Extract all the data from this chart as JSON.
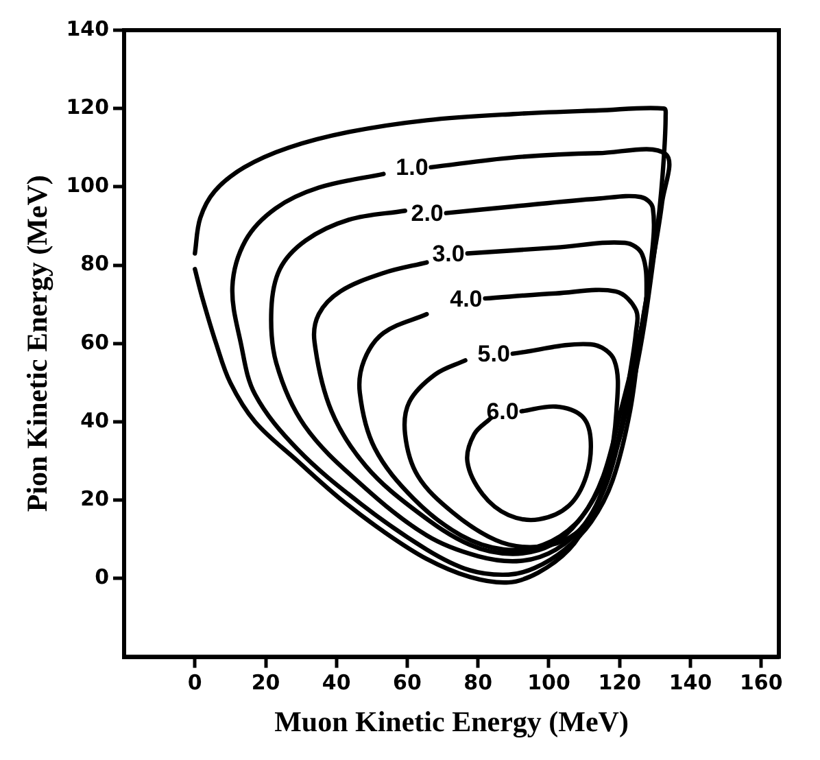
{
  "chart_data": {
    "type": "line",
    "xlabel": "Muon Kinetic Energy (MeV)",
    "ylabel": "Pion Kinetic Energy (MeV)",
    "xlim": [
      -20,
      165
    ],
    "ylim": [
      -20,
      140
    ],
    "xticks": [
      0,
      20,
      40,
      60,
      80,
      100,
      120,
      140,
      160
    ],
    "yticks": [
      0,
      20,
      40,
      60,
      80,
      100,
      120,
      140
    ],
    "grid": false,
    "legend": false,
    "marker": "none",
    "line_style": "solid",
    "series": [
      {
        "color": "#000000",
        "x": [
          0,
          1.5,
          5.7,
          14,
          26.5,
          43.5,
          65.5,
          90,
          114,
          132.5,
          133,
          132.5,
          131.3,
          129.4,
          127,
          124.6,
          122.7,
          120.3,
          116.6,
          111.8,
          105.7,
          97,
          88.6,
          77.7,
          65.5,
          53.3,
          41,
          29,
          17,
          10,
          6,
          2,
          0
        ],
        "values": [
          83,
          92,
          99,
          105,
          110,
          114,
          117,
          118.6,
          119.5,
          120,
          118,
          107.5,
          94.5,
          80.4,
          65,
          53,
          46,
          37,
          25,
          15.7,
          7.4,
          1.5,
          -1,
          0.4,
          5,
          12,
          20.4,
          30,
          40,
          50,
          60,
          72,
          79
        ]
      },
      {
        "name": "1.0",
        "color": "#000000",
        "x": [
          66.7,
          90,
          114,
          133,
          132,
          129,
          126,
          123,
          118,
          112,
          104.5,
          96,
          88.6,
          77.7,
          65.5,
          47,
          29,
          17,
          13,
          10.6,
          14.3,
          22.8,
          35,
          53.3
        ],
        "values": [
          105,
          107.5,
          108.6,
          108.4,
          96,
          79,
          63,
          43,
          25,
          14.5,
          7.4,
          2.7,
          1,
          2.1,
          7.4,
          19,
          33,
          47,
          60,
          74.5,
          86.3,
          94.5,
          99.8,
          103.3
        ]
      },
      {
        "name": "2.0",
        "color": "#000000",
        "x": [
          71,
          90,
          114,
          126,
          129.4,
          128.8,
          126,
          121.5,
          116.6,
          110.6,
          102,
          92,
          80,
          65.5,
          47,
          31,
          23,
          21.6,
          24,
          31.3,
          43.5,
          59.4
        ],
        "values": [
          93.3,
          95,
          97,
          97.4,
          94.5,
          80,
          63,
          43,
          26,
          14.5,
          7.4,
          4.5,
          5.7,
          11,
          24,
          39,
          55,
          68.6,
          79,
          86.3,
          91.6,
          93.9
        ]
      },
      {
        "name": "3.0",
        "color": "#000000",
        "x": [
          77,
          102,
          121.5,
          126.4,
          127.6,
          126.4,
          120.3,
          115.4,
          109.3,
          100.8,
          89.8,
          77.7,
          63,
          48.4,
          38.6,
          33.8,
          35,
          41.1,
          53.3,
          65.5
        ],
        "values": [
          83,
          84.5,
          85.7,
          82.7,
          72.2,
          65,
          42.7,
          26.2,
          15.7,
          8.6,
          6.3,
          8.6,
          16.9,
          28.6,
          42.7,
          60.4,
          67.5,
          73.3,
          78,
          80.7
        ]
      },
      {
        "name": "4.0",
        "color": "#000000",
        "x": [
          82,
          102,
          118.9,
          124.6,
          124.6,
          122.7,
          120.3,
          115.4,
          108.1,
          98.4,
          87.4,
          75.2,
          61.8,
          50.8,
          46.6,
          47.8,
          53.3,
          65.5
        ],
        "values": [
          71.5,
          72.8,
          73.3,
          68.6,
          62.7,
          51,
          36.8,
          25.1,
          14.5,
          8.6,
          7.4,
          11,
          20.4,
          33.3,
          47.4,
          55.7,
          62.7,
          67.5
        ]
      },
      {
        "name": "5.0",
        "color": "#000000",
        "x": [
          89.8,
          111.8,
          118.5,
          119.1,
          116.6,
          111.8,
          104.5,
          94.7,
          85,
          72.8,
          63,
          59.4,
          60.6,
          67.9,
          76.4
        ],
        "values": [
          57.4,
          59.8,
          55.7,
          42.7,
          27.4,
          15.7,
          9.8,
          8,
          9.8,
          16.9,
          26.2,
          36.8,
          45.1,
          52.1,
          55.7
        ]
      },
      {
        "name": "6.0",
        "color": "#000000",
        "x": [
          92.3,
          102,
          109.3,
          111.8,
          110.6,
          105.7,
          97.2,
          88.6,
          81.3,
          77,
          78.9,
          83.7
        ],
        "values": [
          42.7,
          43.9,
          41.5,
          35.7,
          26.2,
          18.6,
          15.1,
          16.2,
          21.5,
          29.8,
          36.8,
          41
        ]
      }
    ]
  }
}
